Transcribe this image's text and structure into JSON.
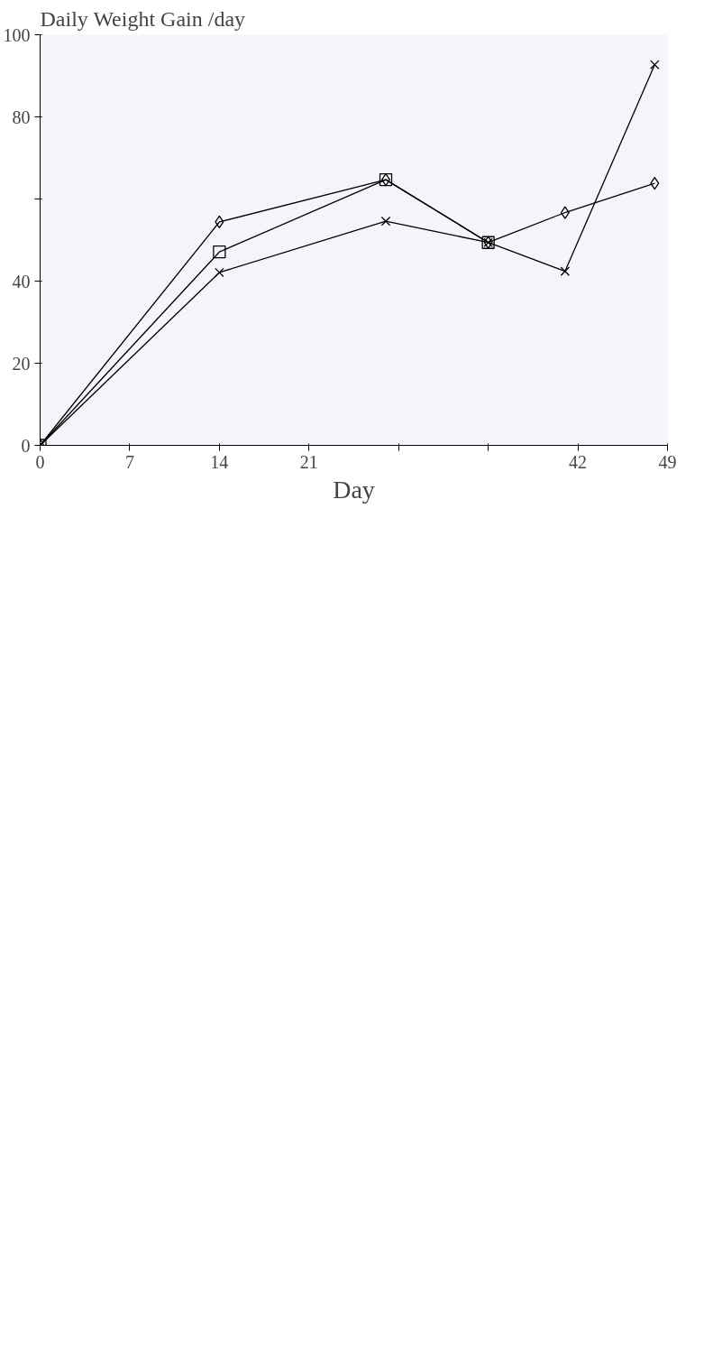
{
  "chart_data": {
    "type": "line",
    "xlabel": "Day",
    "ylabel": "Daily Weight Gain /day",
    "xlim": [
      0,
      49
    ],
    "xticks": [
      0,
      7,
      14,
      21,
      {
        "value": 28,
        "label": null
      },
      {
        "value": 35,
        "label": null
      },
      42,
      49
    ],
    "ylim": [
      0,
      100
    ],
    "yticks": [
      0,
      20,
      40,
      {
        "value": 60,
        "label": null
      },
      80,
      100
    ],
    "grid": false,
    "line_style": "solid",
    "series": [
      {
        "color": "#000000",
        "marker": "diamond",
        "x": [
          0,
          14,
          27,
          35,
          41,
          48
        ],
        "values": [
          0,
          54.4,
          64.7,
          49.4,
          56.7,
          63.8
        ]
      },
      {
        "color": "#000000",
        "marker": "square",
        "x": [
          0,
          14,
          27,
          35
        ],
        "values": [
          0,
          47.1,
          64.7,
          49.4
        ]
      },
      {
        "color": "#000000",
        "marker": "cross",
        "x": [
          0,
          14,
          27,
          35,
          41,
          48
        ],
        "values": [
          0,
          42.1,
          54.6,
          49.4,
          42.4,
          92.7
        ]
      }
    ]
  }
}
